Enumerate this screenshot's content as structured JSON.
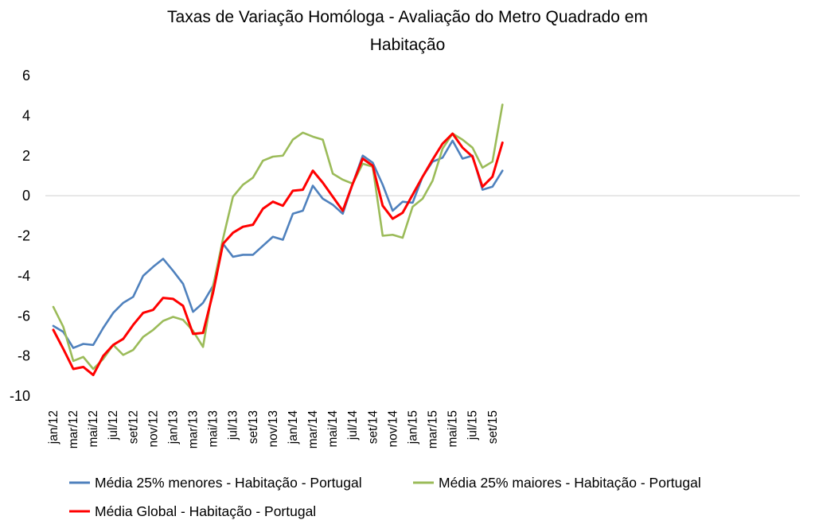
{
  "chart_data": {
    "type": "line",
    "title": "Taxas de Variação Homóloga - Avaliação do Metro Quadrado em Habitação",
    "title_lines": [
      "Taxas de Variação Homóloga - Avaliação do Metro Quadrado em",
      "Habitação"
    ],
    "ylim": [
      -10,
      6
    ],
    "yticks": [
      6,
      4,
      2,
      0,
      -2,
      -4,
      -6,
      -8,
      -10
    ],
    "x": [
      "jan/12",
      "fev/12",
      "mar/12",
      "abr/12",
      "mai/12",
      "jun/12",
      "jul/12",
      "ago/12",
      "set/12",
      "out/12",
      "nov/12",
      "dez/12",
      "jan/13",
      "fev/13",
      "mar/13",
      "abr/13",
      "mai/13",
      "jun/13",
      "jul/13",
      "ago/13",
      "set/13",
      "out/13",
      "nov/13",
      "dez/13",
      "jan/14",
      "fev/14",
      "mar/14",
      "abr/14",
      "mai/14",
      "jun/14",
      "jul/14",
      "ago/14",
      "set/14",
      "out/14",
      "nov/14",
      "dez/14",
      "jan/15",
      "fev/15",
      "mar/15",
      "abr/15",
      "mai/15",
      "jun/15",
      "jul/15",
      "ago/15",
      "set/15",
      "out/15"
    ],
    "xtick_labels": [
      "jan/12",
      "mar/12",
      "mai/12",
      "jul/12",
      "set/12",
      "nov/12",
      "jan/13",
      "mar/13",
      "mai/13",
      "jul/13",
      "set/13",
      "nov/13",
      "jan/14",
      "mar/14",
      "mai/14",
      "jul/14",
      "set/14",
      "nov/14",
      "jan/15",
      "mar/15",
      "mai/15",
      "jul/15",
      "set/15"
    ],
    "grid": "horizontal-zero-line",
    "legend_position": "bottom",
    "series": [
      {
        "name": "Média 25% menores - Habitação - Portugal",
        "color": "#4f81bd",
        "values": [
          -6.5,
          -6.8,
          -7.6,
          -7.4,
          -7.45,
          -6.6,
          -5.85,
          -5.35,
          -5.05,
          -4.0,
          -3.55,
          -3.15,
          -3.75,
          -4.4,
          -5.8,
          -5.35,
          -4.5,
          -2.4,
          -3.05,
          -2.95,
          -2.95,
          -2.5,
          -2.05,
          -2.2,
          -0.9,
          -0.75,
          0.5,
          -0.15,
          -0.45,
          -0.9,
          0.6,
          2.0,
          1.65,
          0.55,
          -0.75,
          -0.3,
          -0.35,
          0.95,
          1.7,
          1.9,
          2.75,
          1.85,
          2.0,
          0.3,
          0.45,
          1.25
        ]
      },
      {
        "name": "Média 25% maiores - Habitação - Portugal",
        "color": "#9bbb59",
        "values": [
          -5.55,
          -6.55,
          -8.25,
          -8.05,
          -8.65,
          -8.15,
          -7.45,
          -7.95,
          -7.7,
          -7.05,
          -6.7,
          -6.25,
          -6.05,
          -6.2,
          -6.75,
          -7.55,
          -4.55,
          -2.15,
          -0.05,
          0.55,
          0.9,
          1.75,
          1.95,
          2.0,
          2.8,
          3.15,
          2.95,
          2.8,
          1.1,
          0.8,
          0.6,
          1.6,
          1.45,
          -2.0,
          -1.95,
          -2.1,
          -0.55,
          -0.15,
          0.75,
          2.35,
          3.1,
          2.8,
          2.4,
          1.4,
          1.7,
          4.55
        ]
      },
      {
        "name": "Média Global - Habitação - Portugal",
        "color": "#ff0000",
        "values": [
          -6.7,
          -7.65,
          -8.65,
          -8.55,
          -8.95,
          -8.0,
          -7.45,
          -7.15,
          -6.45,
          -5.85,
          -5.7,
          -5.1,
          -5.15,
          -5.5,
          -6.9,
          -6.85,
          -4.85,
          -2.4,
          -1.85,
          -1.55,
          -1.45,
          -0.65,
          -0.3,
          -0.5,
          0.25,
          0.3,
          1.25,
          0.65,
          -0.05,
          -0.75,
          0.6,
          1.85,
          1.5,
          -0.5,
          -1.15,
          -0.85,
          0.05,
          0.95,
          1.8,
          2.6,
          3.1,
          2.4,
          1.95,
          0.45,
          0.95,
          2.65
        ]
      }
    ]
  }
}
